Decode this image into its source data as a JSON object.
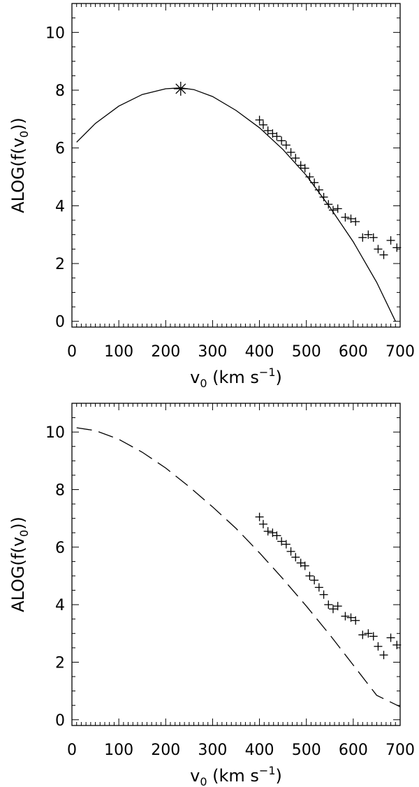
{
  "chart_data": [
    {
      "type": "scatter",
      "title": "",
      "xlabel": "v",
      "xlabel_sub": "0",
      "xlabel_unit": "(km s",
      "xlabel_unit_sup": "−1",
      "xlabel_close": ")",
      "ylabel_prefix": "ALOG(f(v",
      "ylabel_sub": "0",
      "ylabel_suffix": "))",
      "xlim": [
        0,
        700
      ],
      "ylim": [
        -0.2,
        11
      ],
      "xticks": [
        0,
        100,
        200,
        300,
        400,
        500,
        600,
        700
      ],
      "xtick_labels": [
        "0",
        "100",
        "200",
        "300",
        "400",
        "500",
        "600",
        "700"
      ],
      "yticks": [
        0,
        2,
        4,
        6,
        8,
        10
      ],
      "ytick_labels": [
        "0",
        "2",
        "4",
        "6",
        "8",
        "10"
      ],
      "grid": false,
      "curve": {
        "style": "solid",
        "x": [
          10,
          50,
          100,
          150,
          200,
          232,
          260,
          300,
          350,
          400,
          450,
          500,
          550,
          600,
          650,
          690
        ],
        "y": [
          6.2,
          6.85,
          7.45,
          7.85,
          8.05,
          8.08,
          8.02,
          7.78,
          7.3,
          6.7,
          5.95,
          5.05,
          3.95,
          2.75,
          1.35,
          0.0
        ]
      },
      "peak_marker": {
        "symbol": "asterisk",
        "x": 232,
        "y": 8.05
      },
      "series": [
        {
          "symbol": "plus",
          "x": [
            400,
            408,
            418,
            428,
            437,
            447,
            457,
            467,
            477,
            488,
            497,
            507,
            517,
            527,
            537,
            547,
            557,
            567,
            583,
            595,
            605,
            620,
            632,
            643,
            653,
            665,
            680,
            693
          ],
          "y": [
            6.97,
            6.8,
            6.6,
            6.5,
            6.4,
            6.25,
            6.1,
            5.85,
            5.65,
            5.4,
            5.3,
            5.0,
            4.8,
            4.55,
            4.3,
            4.05,
            3.85,
            3.9,
            3.6,
            3.55,
            3.45,
            2.9,
            3.0,
            2.9,
            2.5,
            2.3,
            2.8,
            2.55
          ]
        }
      ]
    },
    {
      "type": "scatter",
      "title": "",
      "xlabel": "v",
      "xlabel_sub": "0",
      "xlabel_unit": "(km s",
      "xlabel_unit_sup": "−1",
      "xlabel_close": ")",
      "ylabel_prefix": "ALOG(f(v",
      "ylabel_sub": "0",
      "ylabel_suffix": "))",
      "xlim": [
        0,
        700
      ],
      "ylim": [
        -0.2,
        11
      ],
      "xticks": [
        0,
        100,
        200,
        300,
        400,
        500,
        600,
        700
      ],
      "xtick_labels": [
        "0",
        "100",
        "200",
        "300",
        "400",
        "500",
        "600",
        "700"
      ],
      "yticks": [
        0,
        2,
        4,
        6,
        8,
        10
      ],
      "ytick_labels": [
        "0",
        "2",
        "4",
        "6",
        "8",
        "10"
      ],
      "grid": false,
      "curve": {
        "style": "dashed",
        "x": [
          10,
          50,
          100,
          150,
          200,
          250,
          300,
          350,
          400,
          450,
          500,
          550,
          600,
          650,
          700
        ],
        "y": [
          10.15,
          10.05,
          9.75,
          9.3,
          8.75,
          8.1,
          7.4,
          6.65,
          5.8,
          4.9,
          3.95,
          2.95,
          1.9,
          0.85,
          0.45
        ]
      },
      "series": [
        {
          "symbol": "plus",
          "x": [
            400,
            408,
            418,
            428,
            437,
            447,
            457,
            467,
            477,
            488,
            497,
            507,
            517,
            527,
            537,
            547,
            557,
            567,
            583,
            595,
            605,
            620,
            632,
            643,
            653,
            665,
            680,
            693
          ],
          "y": [
            7.05,
            6.8,
            6.55,
            6.5,
            6.4,
            6.2,
            6.1,
            5.85,
            5.65,
            5.45,
            5.35,
            5.0,
            4.85,
            4.6,
            4.35,
            4.0,
            3.85,
            3.95,
            3.6,
            3.55,
            3.45,
            2.95,
            3.0,
            2.9,
            2.55,
            2.25,
            2.85,
            2.6
          ]
        }
      ]
    }
  ]
}
